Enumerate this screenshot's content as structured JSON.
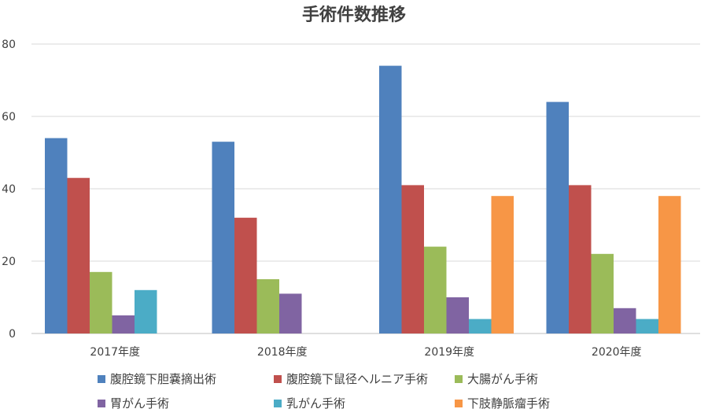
{
  "chart_data": {
    "type": "bar",
    "title": "手術件数推移",
    "categories": [
      "2017年度",
      "2018年度",
      "2019年度",
      "2020年度"
    ],
    "series": [
      {
        "name": "腹腔鏡下胆嚢摘出術",
        "color": "#4F81BD",
        "values": [
          54,
          53,
          74,
          64
        ]
      },
      {
        "name": "腹腔鏡下鼠径ヘルニア手術",
        "color": "#C0504D",
        "values": [
          43,
          32,
          41,
          41
        ]
      },
      {
        "name": "大腸がん手術",
        "color": "#9BBB59",
        "values": [
          17,
          15,
          24,
          22
        ]
      },
      {
        "name": "胃がん手術",
        "color": "#8064A2",
        "values": [
          5,
          11,
          10,
          7
        ]
      },
      {
        "name": "乳がん手術",
        "color": "#4BACC6",
        "values": [
          12,
          null,
          4,
          4
        ]
      },
      {
        "name": "下肢静脈瘤手術",
        "color": "#F79646",
        "values": [
          null,
          null,
          38,
          38
        ]
      }
    ],
    "ylim": [
      0,
      80
    ],
    "yticks": [
      "0",
      "20",
      "40",
      "60",
      "80"
    ],
    "grid": true,
    "legend_position": "bottom"
  }
}
